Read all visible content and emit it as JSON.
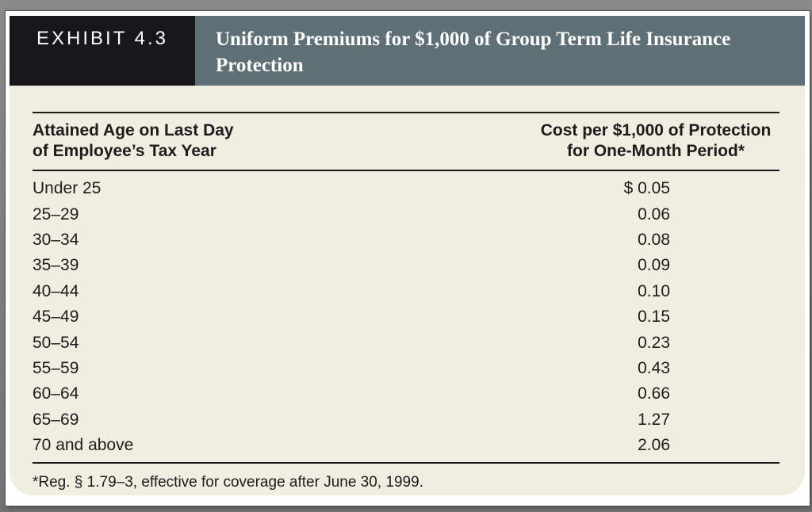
{
  "exhibit": {
    "label": "EXHIBIT 4.3",
    "title": "Uniform Premiums for $1,000 of Group Term Life Insurance Protection"
  },
  "table": {
    "col_age_header_line1": "Attained Age on Last Day",
    "col_age_header_line2": "of Employee’s Tax Year",
    "col_cost_header_line1": "Cost per $1,000 of Protection",
    "col_cost_header_line2": "for One-Month Period*",
    "rows": [
      {
        "age": "Under 25",
        "cost": "$ 0.05"
      },
      {
        "age": "25–29",
        "cost": "0.06"
      },
      {
        "age": "30–34",
        "cost": "0.08"
      },
      {
        "age": "35–39",
        "cost": "0.09"
      },
      {
        "age": "40–44",
        "cost": "0.10"
      },
      {
        "age": "45–49",
        "cost": "0.15"
      },
      {
        "age": "50–54",
        "cost": "0.23"
      },
      {
        "age": "55–59",
        "cost": "0.43"
      },
      {
        "age": "60–64",
        "cost": "0.66"
      },
      {
        "age": "65–69",
        "cost": "1.27"
      },
      {
        "age": "70 and above",
        "cost": "2.06"
      }
    ]
  },
  "footnote": "*Reg. § 1.79–3, effective for coverage after June 30, 1999.",
  "colors": {
    "frame_bg": "#7d7d7d",
    "page_bg": "#ffffff",
    "exhibit_tab_bg": "#17171a",
    "title_bar_bg": "#5e6f76",
    "content_bg": "#f0eee1",
    "text": "#1c1c1c",
    "header_text": "#ffffff"
  }
}
